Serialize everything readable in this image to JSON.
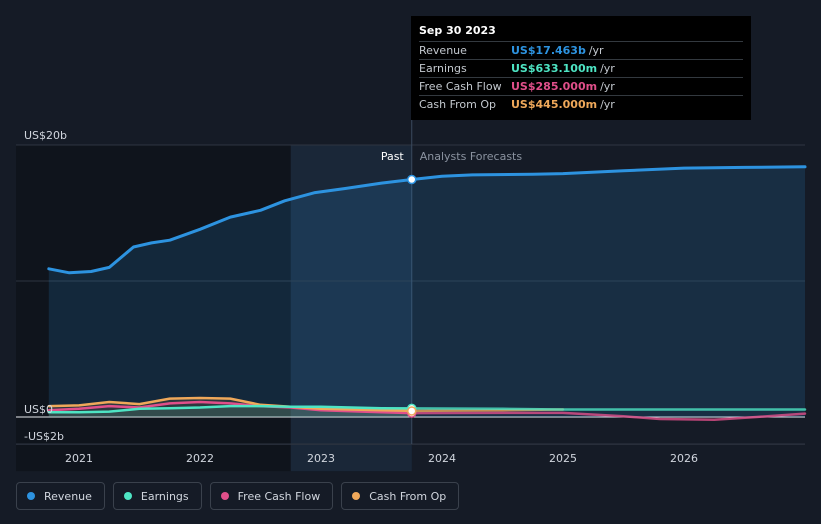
{
  "tooltip": {
    "date": "Sep 30 2023",
    "rows": [
      {
        "label": "Revenue",
        "value": "US$17.463b",
        "unit": "/yr",
        "color": "#2d93e0"
      },
      {
        "label": "Earnings",
        "value": "US$633.100m",
        "unit": "/yr",
        "color": "#4ee5c4"
      },
      {
        "label": "Free Cash Flow",
        "value": "US$285.000m",
        "unit": "/yr",
        "color": "#e04f8a"
      },
      {
        "label": "Cash From Op",
        "value": "US$445.000m",
        "unit": "/yr",
        "color": "#efa85a"
      }
    ]
  },
  "legend": [
    {
      "label": "Revenue",
      "color": "#2d93e0"
    },
    {
      "label": "Earnings",
      "color": "#4ee5c4"
    },
    {
      "label": "Free Cash Flow",
      "color": "#e04f8a"
    },
    {
      "label": "Cash From Op",
      "color": "#efa85a"
    }
  ],
  "chart_data": {
    "type": "line",
    "currency_unit": "US$ b",
    "ylim": [
      -2,
      20
    ],
    "xlim": [
      2020.5,
      2027.0
    ],
    "y_tick_labels": [
      {
        "value": 20,
        "label": "US$20b"
      },
      {
        "value": 0,
        "label": "US$0"
      },
      {
        "value": -2,
        "label": "-US$2b"
      }
    ],
    "x_tick_labels": [
      {
        "value": 2021,
        "label": "2021"
      },
      {
        "value": 2022,
        "label": "2022"
      },
      {
        "value": 2023,
        "label": "2023"
      },
      {
        "value": 2024,
        "label": "2024"
      },
      {
        "value": 2025,
        "label": "2025"
      },
      {
        "value": 2026,
        "label": "2026"
      }
    ],
    "past_label": "Past",
    "forecast_label": "Analysts Forecasts",
    "divider_x": 2023.75,
    "highlight_x": [
      2022.75,
      2023.75
    ],
    "series": [
      {
        "name": "Revenue",
        "color": "#2d93e0",
        "area": true,
        "past": [
          [
            2020.75,
            10.9
          ],
          [
            2020.92,
            10.6
          ],
          [
            2021.1,
            10.7
          ],
          [
            2021.25,
            11.0
          ],
          [
            2021.45,
            12.5
          ],
          [
            2021.6,
            12.8
          ],
          [
            2021.75,
            13.0
          ],
          [
            2022.0,
            13.8
          ],
          [
            2022.25,
            14.7
          ],
          [
            2022.5,
            15.2
          ],
          [
            2022.7,
            15.9
          ],
          [
            2022.95,
            16.5
          ],
          [
            2023.2,
            16.8
          ],
          [
            2023.5,
            17.2
          ],
          [
            2023.75,
            17.463
          ]
        ],
        "forecast": [
          [
            2023.75,
            17.463
          ],
          [
            2024.0,
            17.7
          ],
          [
            2024.25,
            17.8
          ],
          [
            2024.75,
            17.85
          ],
          [
            2025.0,
            17.9
          ],
          [
            2025.5,
            18.1
          ],
          [
            2026.0,
            18.3
          ],
          [
            2026.5,
            18.35
          ],
          [
            2027.0,
            18.4
          ]
        ]
      },
      {
        "name": "Earnings",
        "color": "#4ee5c4",
        "past": [
          [
            2020.75,
            0.35
          ],
          [
            2021.0,
            0.35
          ],
          [
            2021.25,
            0.4
          ],
          [
            2021.5,
            0.6
          ],
          [
            2021.75,
            0.65
          ],
          [
            2022.0,
            0.7
          ],
          [
            2022.25,
            0.8
          ],
          [
            2022.5,
            0.8
          ],
          [
            2022.75,
            0.75
          ],
          [
            2023.0,
            0.75
          ],
          [
            2023.25,
            0.7
          ],
          [
            2023.5,
            0.65
          ],
          [
            2023.75,
            0.633
          ]
        ],
        "forecast": [
          [
            2023.75,
            0.633
          ],
          [
            2024.5,
            0.6
          ],
          [
            2025.0,
            0.55
          ],
          [
            2026.0,
            0.55
          ],
          [
            2027.0,
            0.55
          ]
        ]
      },
      {
        "name": "Free Cash Flow",
        "color": "#e04f8a",
        "past": [
          [
            2020.75,
            0.5
          ],
          [
            2021.0,
            0.6
          ],
          [
            2021.25,
            0.8
          ],
          [
            2021.5,
            0.7
          ],
          [
            2021.75,
            1.0
          ],
          [
            2022.0,
            1.1
          ],
          [
            2022.25,
            1.0
          ],
          [
            2022.5,
            0.8
          ],
          [
            2022.75,
            0.7
          ],
          [
            2023.0,
            0.5
          ],
          [
            2023.5,
            0.35
          ],
          [
            2023.75,
            0.285
          ]
        ],
        "forecast": [
          [
            2023.75,
            0.285
          ],
          [
            2024.5,
            0.3
          ],
          [
            2025.0,
            0.3
          ],
          [
            2025.5,
            0.05
          ],
          [
            2025.8,
            -0.15
          ],
          [
            2026.25,
            -0.2
          ],
          [
            2026.6,
            0.0
          ],
          [
            2027.0,
            0.25
          ]
        ]
      },
      {
        "name": "Cash From Op",
        "color": "#efa85a",
        "past": [
          [
            2020.75,
            0.8
          ],
          [
            2021.0,
            0.85
          ],
          [
            2021.25,
            1.1
          ],
          [
            2021.5,
            0.95
          ],
          [
            2021.75,
            1.35
          ],
          [
            2022.0,
            1.4
          ],
          [
            2022.25,
            1.35
          ],
          [
            2022.5,
            0.9
          ],
          [
            2022.75,
            0.75
          ],
          [
            2023.0,
            0.6
          ],
          [
            2023.5,
            0.5
          ],
          [
            2023.75,
            0.445
          ]
        ],
        "forecast": [
          [
            2023.75,
            0.445
          ],
          [
            2024.5,
            0.5
          ],
          [
            2025.0,
            0.55
          ]
        ]
      }
    ]
  }
}
